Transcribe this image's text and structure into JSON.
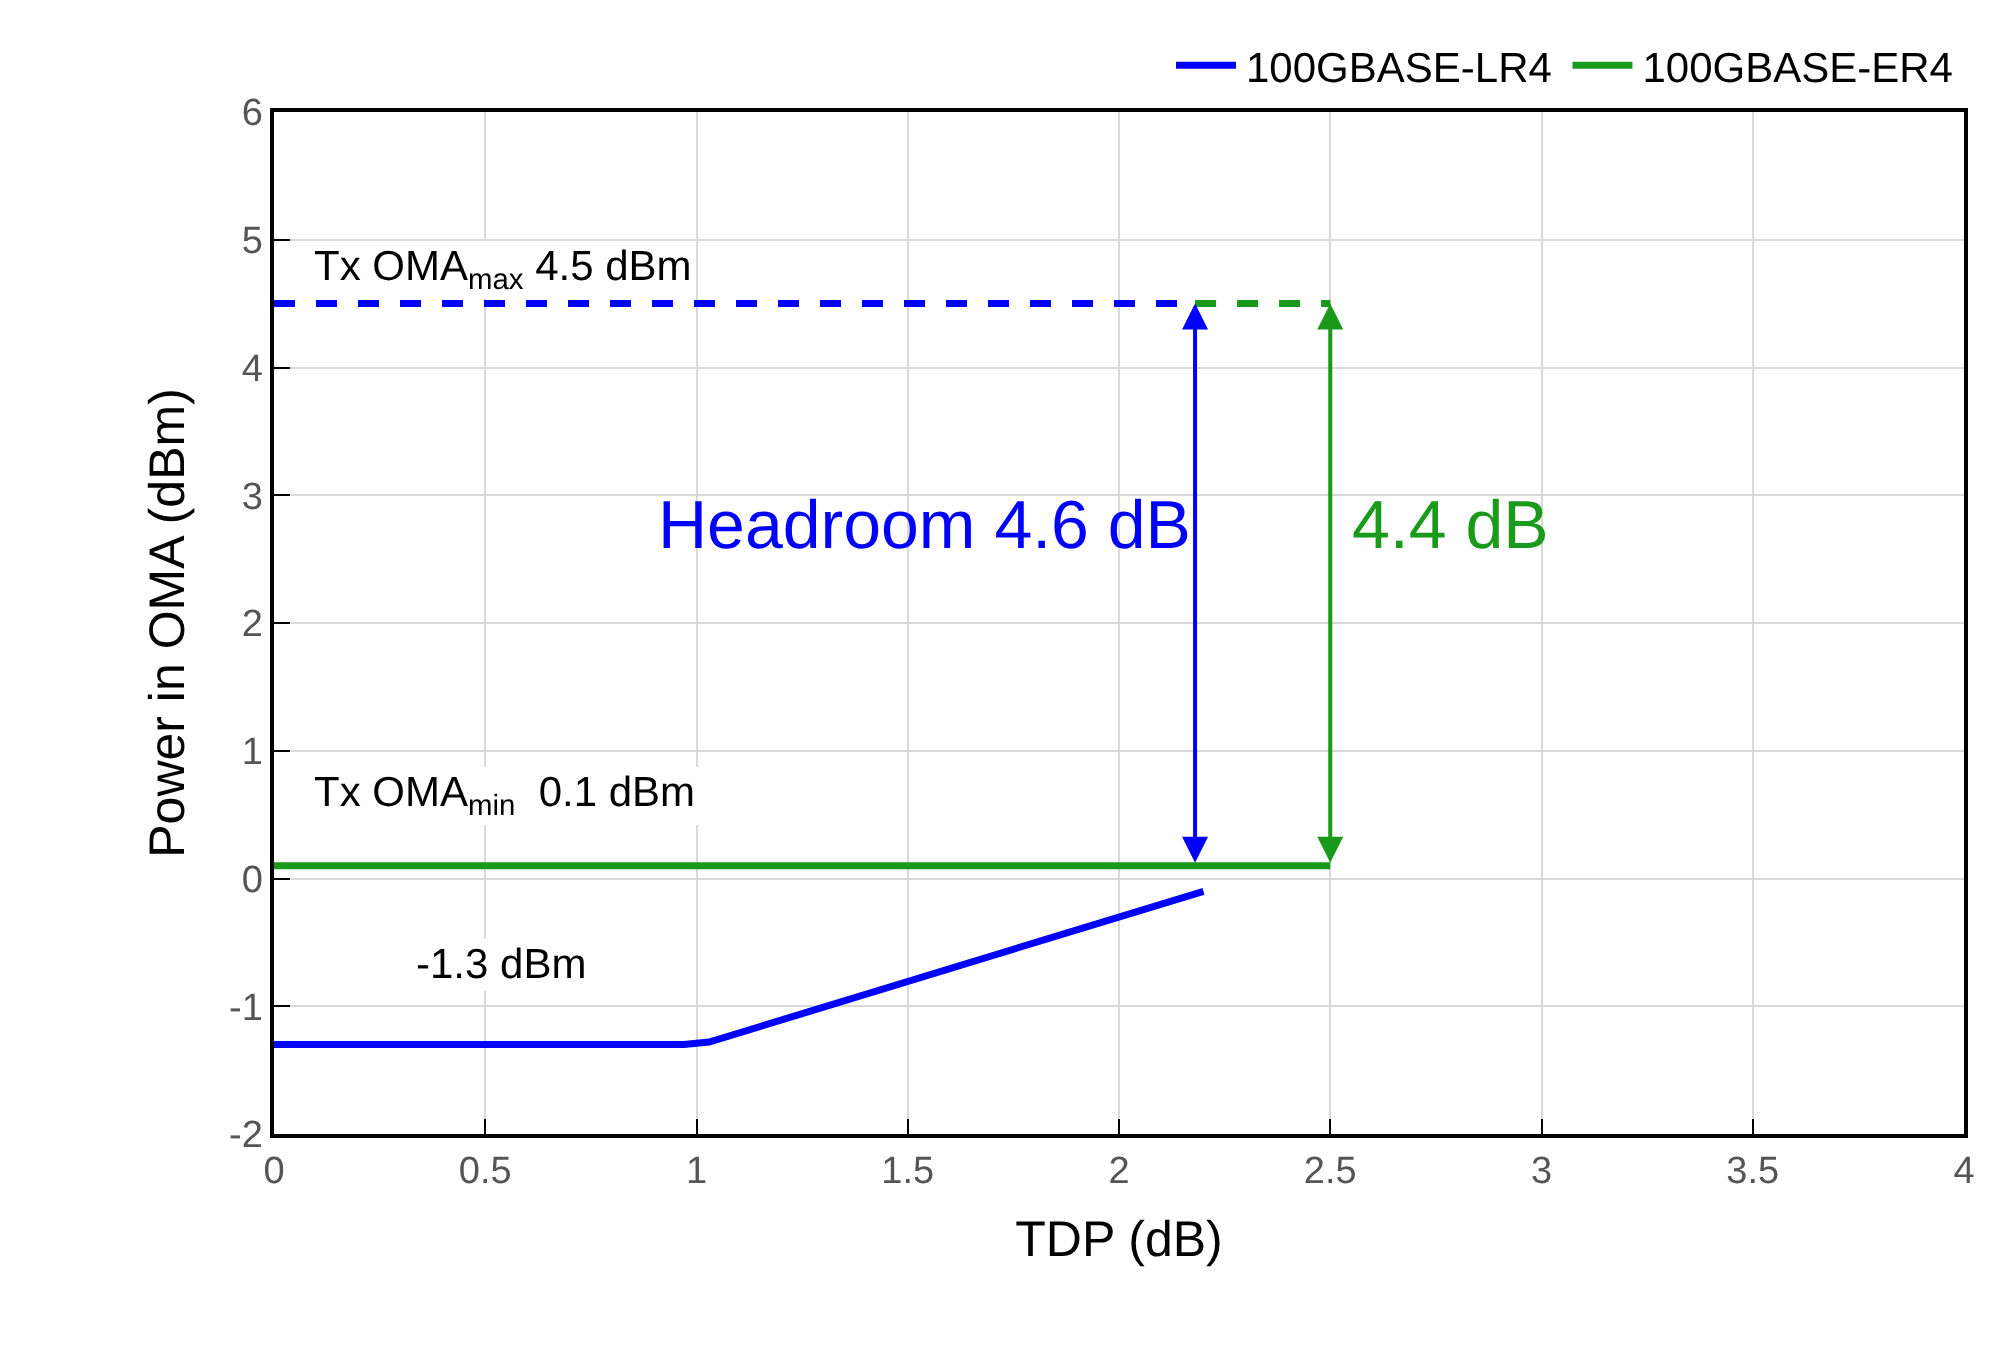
{
  "chart_data": {
    "type": "line",
    "xlabel": "TDP (dB)",
    "ylabel": "Power in OMA (dBm)",
    "xlim": [
      0,
      4
    ],
    "xticks": [
      0,
      0.5,
      1,
      1.5,
      2,
      2.5,
      3,
      3.5,
      4
    ],
    "ylim": [
      -2,
      6
    ],
    "yticks": [
      -2,
      -1,
      0,
      1,
      2,
      3,
      4,
      5,
      6
    ],
    "grid": true,
    "legend": "top",
    "marker": "none",
    "series": [
      {
        "name": "100GBASE-LR4",
        "color": "#0000ff",
        "x": [
          0,
          0.97,
          1.03,
          2.2
        ],
        "values": [
          -1.3,
          -1.3,
          -1.28,
          -0.1
        ],
        "line_style": "solid"
      },
      {
        "color": "#0000ff",
        "x": [
          0,
          2.18
        ],
        "values": [
          4.5,
          4.5
        ],
        "line_style": "dashed"
      },
      {
        "name": "100GBASE-ER4",
        "color": "#1a9a1a",
        "x": [
          0,
          2.5
        ],
        "values": [
          0.1,
          0.1
        ],
        "line_style": "solid"
      },
      {
        "color": "#1a9a1a",
        "x": [
          2.18,
          2.5
        ],
        "values": [
          4.5,
          4.5
        ],
        "line_style": "dashed"
      }
    ],
    "annotations": [
      "Tx OMA$_{max}$ 4.5 dBm",
      "Tx OMA$_{min}$  0.1 dBm",
      "-1.3 dBm",
      "Headroom 4.6 dB",
      "4.4 dB"
    ]
  }
}
